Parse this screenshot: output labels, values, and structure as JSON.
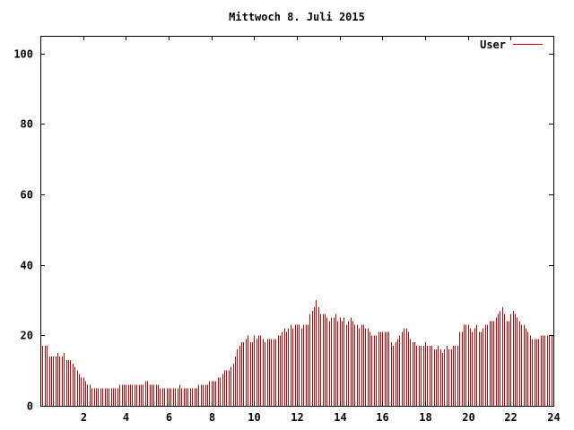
{
  "chart_data": {
    "type": "bar",
    "title": "Mittwoch 8. Juli 2015",
    "xlabel": "",
    "ylabel": "",
    "xlim": [
      0,
      24
    ],
    "ylim": [
      0,
      105
    ],
    "x_ticks": [
      2,
      4,
      6,
      8,
      10,
      12,
      14,
      16,
      18,
      20,
      22,
      24
    ],
    "y_ticks": [
      0,
      20,
      40,
      60,
      80,
      100
    ],
    "legend": {
      "position": "top-right",
      "entries": [
        "User"
      ]
    },
    "series": [
      {
        "name": "User",
        "color": "#cc0000",
        "x_start": 0,
        "x_step": 0.1,
        "values": [
          18,
          17,
          17,
          17,
          14,
          14,
          14,
          14,
          15,
          14,
          14,
          15,
          13,
          13,
          13,
          12,
          11,
          10,
          9,
          8,
          8,
          7,
          6,
          6,
          5,
          5,
          5,
          5,
          5,
          5,
          5,
          5,
          5,
          5,
          5,
          5,
          5,
          6,
          6,
          6,
          6,
          6,
          6,
          6,
          6,
          6,
          6,
          6,
          6,
          7,
          7,
          6,
          6,
          6,
          6,
          6,
          5,
          5,
          5,
          5,
          5,
          5,
          5,
          5,
          5,
          6,
          5,
          5,
          5,
          5,
          5,
          5,
          5,
          5,
          6,
          6,
          6,
          6,
          6,
          7,
          7,
          7,
          7,
          8,
          8,
          9,
          10,
          10,
          10,
          11,
          12,
          14,
          16,
          17,
          18,
          18,
          19,
          20,
          18,
          18,
          20,
          19,
          20,
          20,
          19,
          18,
          19,
          19,
          19,
          19,
          19,
          20,
          20,
          21,
          22,
          21,
          22,
          23,
          22,
          23,
          23,
          23,
          22,
          23,
          23,
          23,
          26,
          27,
          28,
          30,
          28,
          26,
          26,
          26,
          25,
          24,
          25,
          25,
          26,
          24,
          25,
          24,
          25,
          23,
          24,
          25,
          24,
          23,
          23,
          22,
          23,
          23,
          22,
          22,
          21,
          20,
          20,
          20,
          21,
          21,
          21,
          21,
          21,
          21,
          18,
          17,
          18,
          19,
          20,
          21,
          22,
          22,
          21,
          19,
          18,
          18,
          17,
          17,
          17,
          17,
          18,
          17,
          17,
          17,
          16,
          16,
          17,
          16,
          15,
          16,
          17,
          16,
          16,
          17,
          17,
          17,
          21,
          21,
          23,
          23,
          23,
          22,
          21,
          22,
          23,
          21,
          21,
          22,
          23,
          23,
          24,
          24,
          24,
          25,
          26,
          27,
          28,
          26,
          24,
          24,
          26,
          27,
          26,
          25,
          24,
          23,
          23,
          22,
          21,
          20,
          19,
          19,
          19,
          19,
          20,
          20,
          20,
          20,
          20,
          20
        ]
      }
    ]
  }
}
